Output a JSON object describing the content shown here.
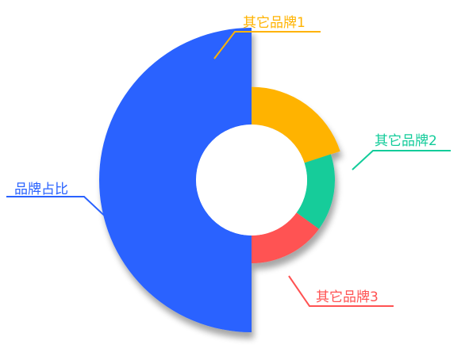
{
  "chart_data": {
    "type": "pie",
    "variant": "rose",
    "title": "",
    "series": [
      {
        "name": "品牌占比",
        "value": 50,
        "color": "#2962FF"
      },
      {
        "name": "其它品牌1",
        "value": 20,
        "color": "#FFB300"
      },
      {
        "name": "其它品牌2",
        "value": 15,
        "color": "#12CC9A"
      },
      {
        "name": "其它品牌3",
        "value": 15,
        "color": "#FF5252"
      }
    ],
    "legend": "none",
    "labels": "outside-with-leader-lines"
  }
}
